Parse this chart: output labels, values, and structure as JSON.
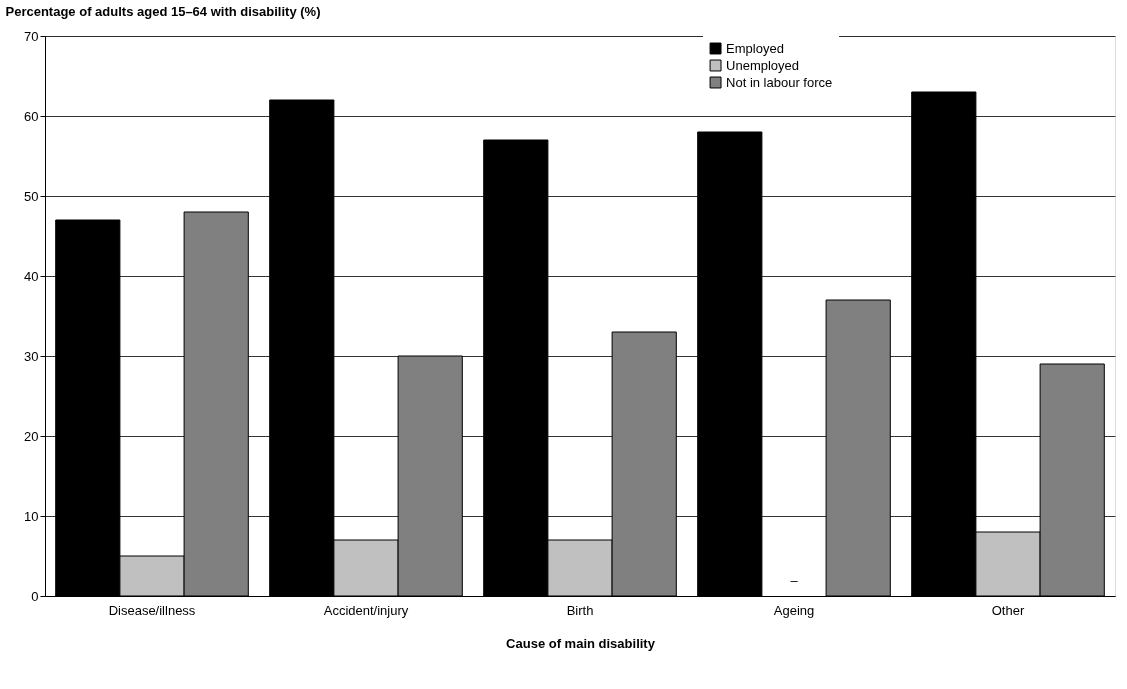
{
  "chart_data": {
    "type": "bar",
    "ylabel": "Percentage of adults aged 15–64 with disability (%)",
    "xlabel": "Cause of main disability",
    "categories": [
      "Disease/illness",
      "Accident/injury",
      "Birth",
      "Ageing",
      "Other"
    ],
    "series": [
      {
        "name": "Employed",
        "color": "#000000",
        "values": [
          47,
          62,
          57,
          58,
          63
        ]
      },
      {
        "name": "Unemployed",
        "color": "#c0c0c0",
        "values": [
          5,
          7,
          7,
          null,
          8
        ]
      },
      {
        "name": "Not in labour force",
        "color": "#808080",
        "values": [
          48,
          30,
          33,
          37,
          29
        ]
      }
    ],
    "annotations": [
      "–"
    ],
    "ylim": [
      0,
      70
    ],
    "yticks": [
      0,
      10,
      20,
      30,
      40,
      50,
      60,
      70
    ],
    "grid": "y",
    "legend": "top right"
  }
}
